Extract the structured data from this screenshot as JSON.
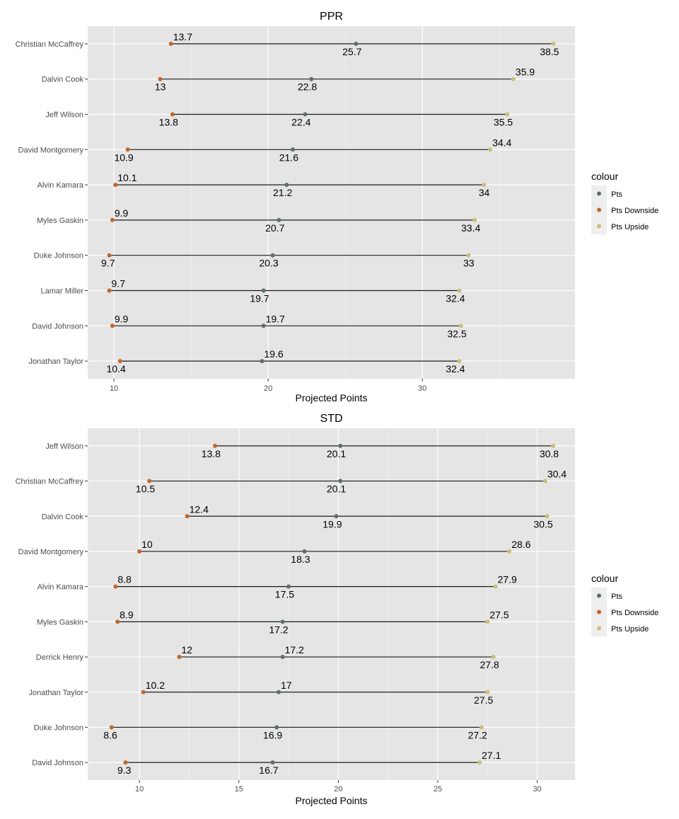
{
  "chart_data": [
    {
      "type": "dumbbell",
      "title": "PPR",
      "xlabel": "Projected Points",
      "ylabel": "",
      "xlim": [
        8.3,
        39.9
      ],
      "xticks": [
        10,
        20,
        30
      ],
      "grid": true,
      "legend": {
        "title": "colour",
        "placement": "right",
        "items": [
          {
            "name": "Pts",
            "color": "#5e7166"
          },
          {
            "name": "Pts Downside",
            "color": "#c0672a"
          },
          {
            "name": "Pts Upside",
            "color": "#c8c07a"
          }
        ]
      },
      "categories": [
        "Christian McCaffrey",
        "Dalvin Cook",
        "Jeff Wilson",
        "David Montgomery",
        "Alvin Kamara",
        "Myles Gaskin",
        "Duke Johnson",
        "Lamar Miller",
        "David Johnson",
        "Jonathan Taylor"
      ],
      "series": [
        {
          "name": "Pts Downside",
          "values": [
            13.7,
            13,
            13.8,
            10.9,
            10.1,
            9.9,
            9.7,
            9.7,
            9.9,
            10.4
          ],
          "label_pos": [
            "above",
            "below",
            "below",
            "below",
            "above",
            "above",
            "below",
            "above",
            "above",
            "below"
          ]
        },
        {
          "name": "Pts",
          "values": [
            25.7,
            22.8,
            22.4,
            21.6,
            21.2,
            20.7,
            20.3,
            19.7,
            19.7,
            19.6
          ],
          "label_pos": [
            "below",
            "below",
            "below",
            "below",
            "below",
            "below",
            "below",
            "below",
            "above",
            "above"
          ]
        },
        {
          "name": "Pts Upside",
          "values": [
            38.5,
            35.9,
            35.5,
            34.4,
            34,
            33.4,
            33,
            32.4,
            32.5,
            32.4
          ],
          "label_pos": [
            "below",
            "above",
            "below",
            "above",
            "below",
            "below",
            "below",
            "below",
            "below",
            "below"
          ]
        }
      ]
    },
    {
      "type": "dumbbell",
      "title": "STD",
      "xlabel": "Projected Points",
      "ylabel": "",
      "xlim": [
        7.4,
        31.9
      ],
      "xticks": [
        10,
        15,
        20,
        25,
        30
      ],
      "grid": true,
      "legend": {
        "title": "colour",
        "placement": "right",
        "items": [
          {
            "name": "Pts",
            "color": "#5e7166"
          },
          {
            "name": "Pts Downside",
            "color": "#c0672a"
          },
          {
            "name": "Pts Upside",
            "color": "#c8c07a"
          }
        ]
      },
      "categories": [
        "Jeff Wilson",
        "Christian McCaffrey",
        "Dalvin Cook",
        "David Montgomery",
        "Alvin Kamara",
        "Myles Gaskin",
        "Derrick Henry",
        "Jonathan Taylor",
        "Duke Johnson",
        "David Johnson"
      ],
      "series": [
        {
          "name": "Pts Downside",
          "values": [
            13.8,
            10.5,
            12.4,
            10,
            8.8,
            8.9,
            12,
            10.2,
            8.6,
            9.3
          ],
          "label_pos": [
            "below",
            "below",
            "above",
            "above",
            "above",
            "above",
            "above",
            "above",
            "below",
            "below"
          ]
        },
        {
          "name": "Pts",
          "values": [
            20.1,
            20.1,
            19.9,
            18.3,
            17.5,
            17.2,
            17.2,
            17,
            16.9,
            16.7
          ],
          "label_pos": [
            "below",
            "below",
            "below",
            "below",
            "below",
            "below",
            "above",
            "above",
            "below",
            "below"
          ]
        },
        {
          "name": "Pts Upside",
          "values": [
            30.8,
            30.4,
            30.5,
            28.6,
            27.9,
            27.5,
            27.8,
            27.5,
            27.2,
            27.1
          ],
          "label_pos": [
            "below",
            "above",
            "below",
            "above",
            "above",
            "above",
            "below",
            "below",
            "below",
            "above"
          ]
        }
      ]
    }
  ]
}
